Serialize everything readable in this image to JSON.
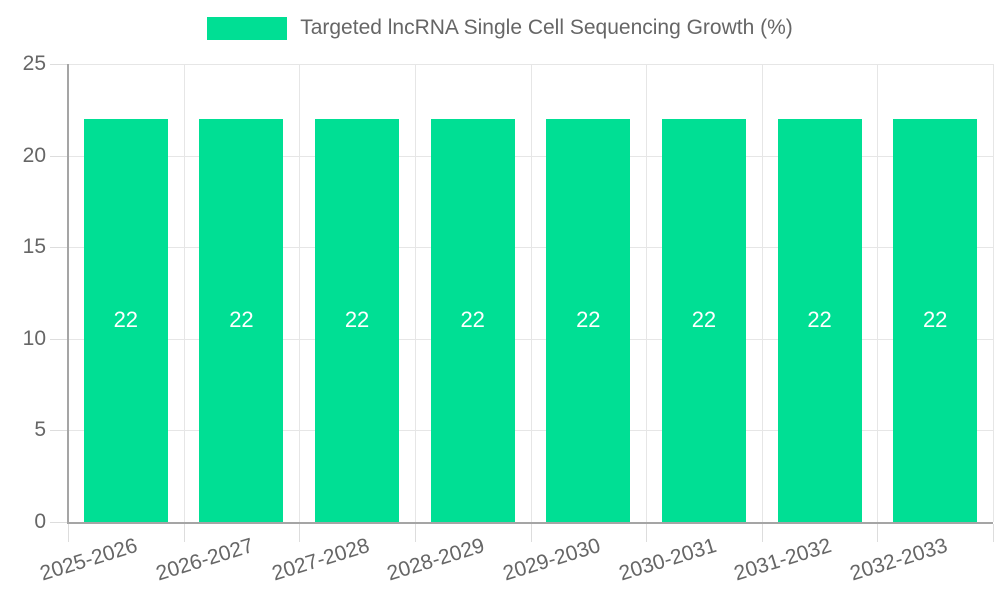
{
  "legend": {
    "label": "Targeted lncRNA Single Cell Sequencing Growth (%)"
  },
  "colors": {
    "bar": "#00DF94",
    "grid": "#E6E6E6",
    "axis": "#A5A5A5",
    "tick_text": "#666666",
    "value_label": "#FFFFFF",
    "background": "#FFFFFF"
  },
  "chart_data": {
    "type": "bar",
    "title": "Targeted lncRNA Single Cell Sequencing Growth (%)",
    "categories": [
      "2025-2026",
      "2026-2027",
      "2027-2028",
      "2028-2029",
      "2029-2030",
      "2030-2031",
      "2031-2032",
      "2032-2033"
    ],
    "values": [
      22,
      22,
      22,
      22,
      22,
      22,
      22,
      22
    ],
    "xlabel": "",
    "ylabel": "",
    "ylim": [
      0,
      25
    ],
    "yticks": [
      0,
      5,
      10,
      15,
      20,
      25
    ],
    "grid": true,
    "legend_position": "top",
    "value_labels_position": "center",
    "x_tick_rotation_deg": -17
  }
}
